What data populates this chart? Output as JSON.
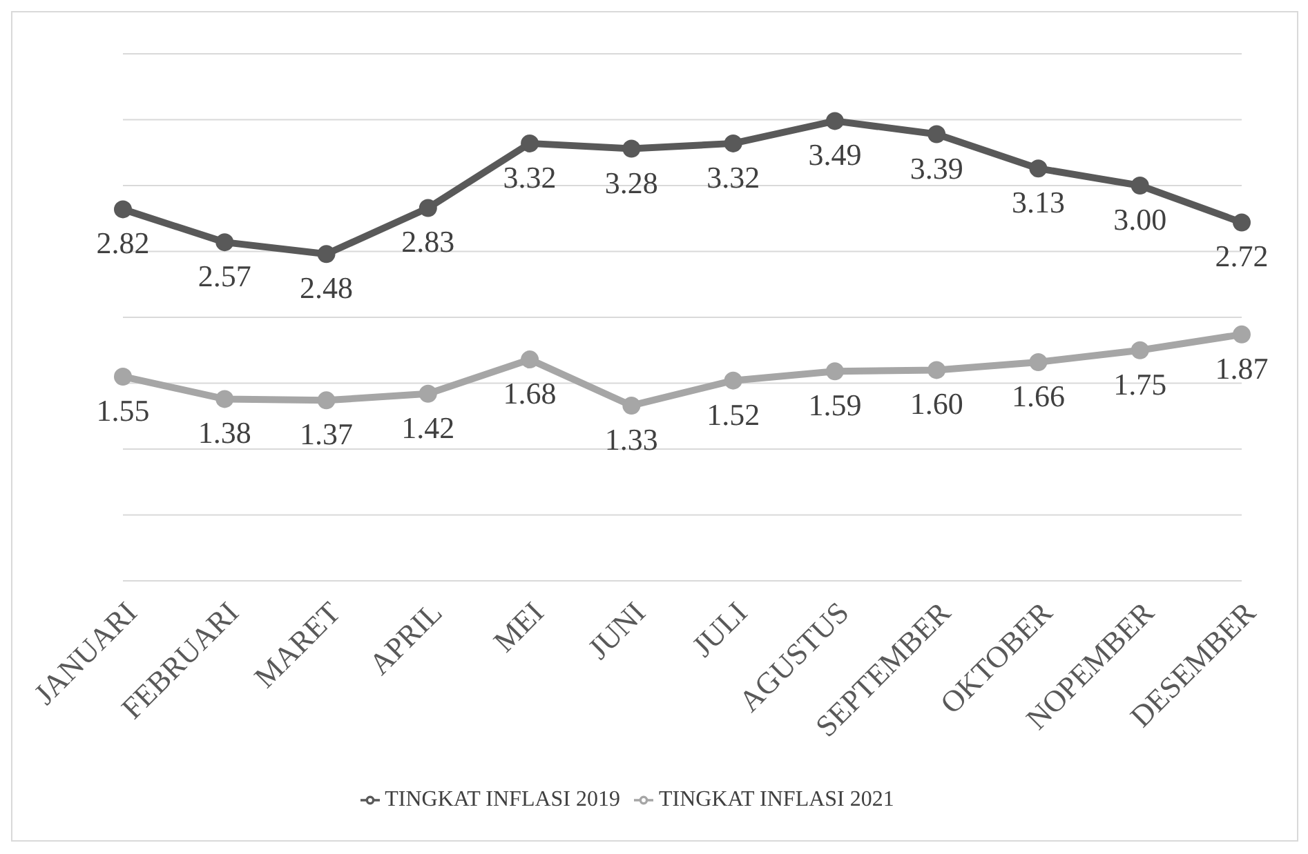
{
  "chart_data": {
    "type": "line",
    "categories": [
      "JANUARI",
      "FEBRUARI",
      "MARET",
      "APRIL",
      "MEI",
      "JUNI",
      "JULI",
      "AGUSTUS",
      "SEPTEMBER",
      "OKTOBER",
      "NOPEMBER",
      "DESEMBER"
    ],
    "series": [
      {
        "name": "TINGKAT INFLASI 2019",
        "color": "#595959",
        "values": [
          2.82,
          2.57,
          2.48,
          2.83,
          3.32,
          3.28,
          3.32,
          3.49,
          3.39,
          3.13,
          3.0,
          2.72
        ],
        "value_labels": [
          "2.82",
          "2.57",
          "2.48",
          "2.83",
          "3.32",
          "3.28",
          "3.32",
          "3.49",
          "3.39",
          "3.13",
          "3.00",
          "2.72"
        ]
      },
      {
        "name": "TINGKAT INFLASI 2021",
        "color": "#a6a6a6",
        "values": [
          1.55,
          1.38,
          1.37,
          1.42,
          1.68,
          1.33,
          1.52,
          1.59,
          1.6,
          1.66,
          1.75,
          1.87
        ],
        "value_labels": [
          "1.55",
          "1.38",
          "1.37",
          "1.42",
          "1.68",
          "1.33",
          "1.52",
          "1.59",
          "1.60",
          "1.66",
          "1.75",
          "1.87"
        ]
      }
    ],
    "ylim": [
      0,
      4
    ],
    "yticks": [
      {
        "value": 0,
        "label": null
      },
      {
        "value": 0.5,
        "label": null
      },
      {
        "value": 1,
        "label": null
      },
      {
        "value": 1.5,
        "label": null
      },
      {
        "value": 2,
        "label": null
      },
      {
        "value": 2.5,
        "label": null
      },
      {
        "value": 3,
        "label": null
      },
      {
        "value": 3.5,
        "label": null
      },
      {
        "value": 4,
        "label": null
      }
    ],
    "tick_labels": "x",
    "grid": "y",
    "legend": "bottom",
    "marker": "circle",
    "line_style": "solid"
  }
}
